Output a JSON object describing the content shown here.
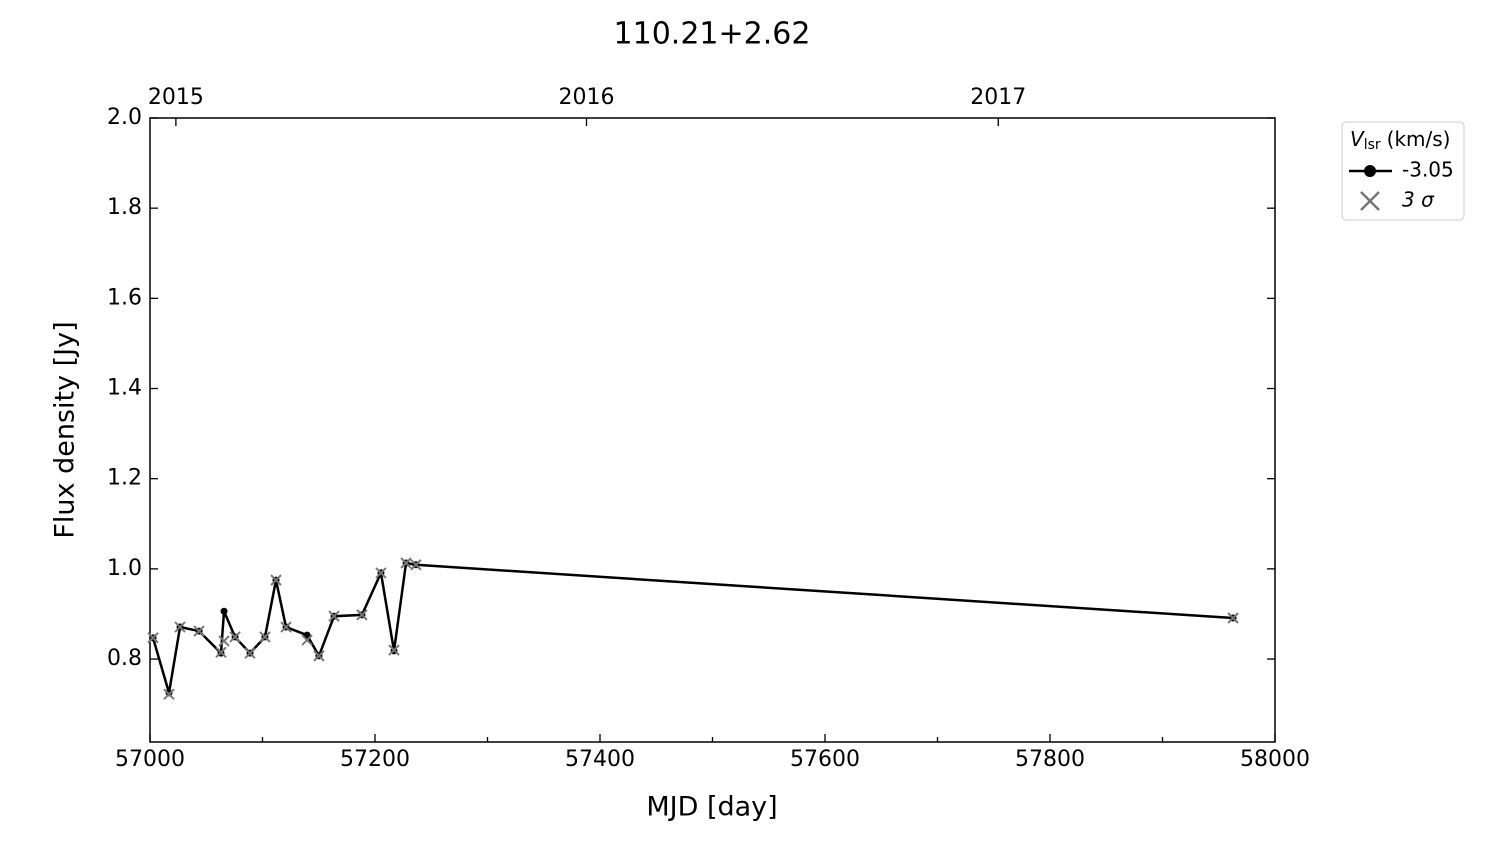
{
  "chart_data": {
    "type": "line",
    "title": "110.21+2.62",
    "x_label": "MJD [day]",
    "y_label": "Flux density [Jy]",
    "xlim": [
      57000,
      58000
    ],
    "xticks": [
      57000,
      57200,
      57400,
      57600,
      57800,
      58000
    ],
    "x_minor_step": 100,
    "x2ticks": [
      {
        "value": 57023,
        "label": "2015"
      },
      {
        "value": 57388,
        "label": "2016"
      },
      {
        "value": 57754,
        "label": "2017"
      }
    ],
    "ylim": [
      0.616,
      2.0
    ],
    "yticks": [
      0.8,
      {
        "value": 1.0,
        "label": "1.0"
      },
      1.2,
      1.4,
      1.6,
      1.8,
      {
        "value": 2.0,
        "label": "2.0"
      }
    ],
    "legend_title": {
      "symbol": "V",
      "subscript": "lsr",
      "unit": "(km/s)"
    },
    "legend_loc": "outside upper right",
    "x": [
      57002.7,
      57016.9,
      57026.7,
      57043.6,
      57063.1,
      57065.8,
      57075.6,
      57088.9,
      57102.2,
      57112,
      57120.9,
      57139.6,
      57150.2,
      57163.6,
      57188.4,
      57205.3,
      57216.9,
      57227.6,
      57236.4,
      57962.7
    ],
    "series": [
      {
        "name": "-3.05",
        "color": "#000000",
        "marker": "circle",
        "values": [
          0.847,
          0.725,
          0.871,
          0.862,
          0.813,
          0.906,
          0.849,
          0.813,
          0.849,
          0.975,
          0.871,
          0.853,
          0.807,
          0.895,
          0.898,
          0.991,
          0.818,
          1.013,
          1.009,
          0.891
        ]
      },
      {
        "name": "3 σ",
        "color": "#777777",
        "marker": "x",
        "values": [
          0.847,
          0.722,
          0.871,
          0.862,
          0.815,
          0.84,
          0.849,
          0.813,
          0.849,
          0.975,
          0.871,
          0.842,
          0.807,
          0.895,
          0.898,
          0.991,
          0.82,
          1.013,
          1.009,
          0.891
        ]
      }
    ]
  }
}
